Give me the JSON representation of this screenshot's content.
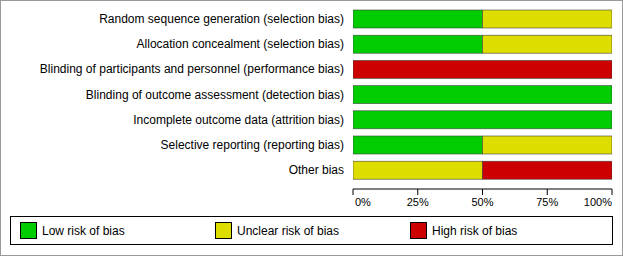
{
  "chart_data": {
    "type": "bar",
    "orientation": "horizontal",
    "stacked": true,
    "legend": "bottom",
    "categories": [
      "Random sequence generation (selection bias)",
      "Allocation concealment (selection bias)",
      "Blinding of participants and personnel (performance bias)",
      "Blinding of outcome assessment (detection bias)",
      "Incomplete outcome data (attrition bias)",
      "Selective reporting (reporting bias)",
      "Other bias"
    ],
    "series": [
      {
        "name": "Low risk of bias",
        "color": "#00cc00",
        "values": [
          50,
          50,
          0,
          100,
          100,
          50,
          0
        ]
      },
      {
        "name": "Unclear risk of bias",
        "color": "#dddd00",
        "values": [
          50,
          50,
          0,
          0,
          0,
          50,
          50
        ]
      },
      {
        "name": "High risk of bias",
        "color": "#cc0000",
        "values": [
          0,
          0,
          100,
          0,
          0,
          0,
          50
        ]
      }
    ],
    "xlim": [
      0,
      100
    ],
    "xticks": [
      {
        "value": 0,
        "label": "0%"
      },
      {
        "value": 25,
        "label": "25%"
      },
      {
        "value": 50,
        "label": "50%"
      },
      {
        "value": 75,
        "label": "75%"
      },
      {
        "value": 100,
        "label": "100%"
      }
    ]
  }
}
